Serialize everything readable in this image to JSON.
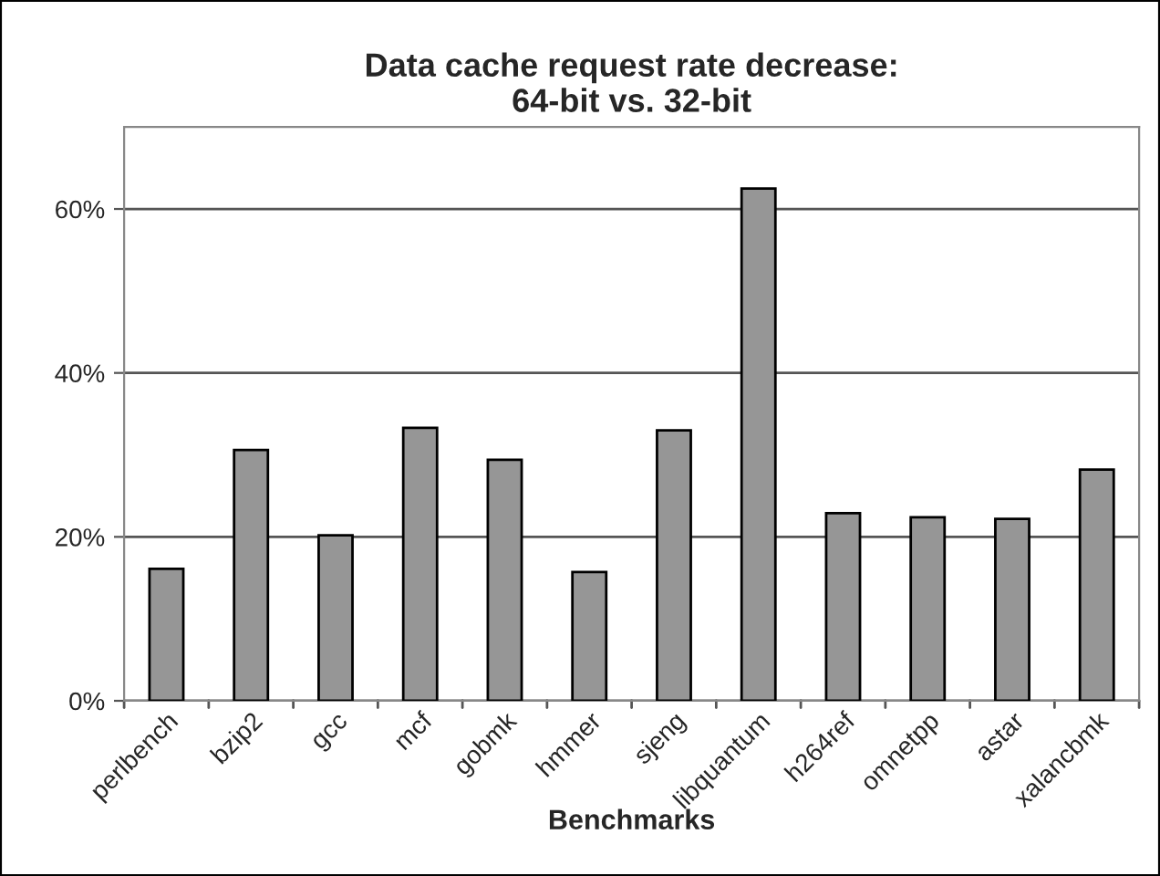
{
  "chart_data": {
    "type": "bar",
    "title": "Data cache request rate decrease:\n64-bit vs. 32-bit",
    "xlabel": "Benchmarks",
    "categories": [
      "perlbench",
      "bzip2",
      "gcc",
      "mcf",
      "gobmk",
      "hmmer",
      "sjeng",
      "libquantum",
      "h264ref",
      "omnetpp",
      "astar",
      "xalancbmk"
    ],
    "values": [
      16.1,
      30.6,
      20.2,
      33.3,
      29.4,
      15.7,
      33.0,
      62.5,
      22.9,
      22.4,
      22.2,
      28.2
    ],
    "color": "#969696",
    "ylim": [
      0,
      70
    ],
    "yticks": [
      {
        "value": 0,
        "label": "0%"
      },
      {
        "value": 20,
        "label": "20%"
      },
      {
        "value": 40,
        "label": "40%"
      },
      {
        "value": 60,
        "label": "60%"
      }
    ],
    "grid": "y",
    "legend": false
  }
}
